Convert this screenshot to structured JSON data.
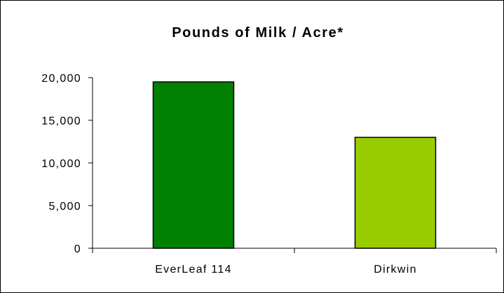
{
  "chart_data": {
    "type": "bar",
    "title": "Pounds of Milk / Acre*",
    "xlabel": "",
    "ylabel": "",
    "categories": [
      "EverLeaf 114",
      "Dirkwin"
    ],
    "values": [
      19500,
      13000
    ],
    "bar_colors": [
      "#008000",
      "#99cc00"
    ],
    "ylim": [
      0,
      20000
    ],
    "yticks": [
      0,
      5000,
      10000,
      15000,
      20000
    ],
    "ytick_labels": [
      "0",
      "5,000",
      "10,000",
      "15,000",
      "20,000"
    ],
    "grid": false,
    "legend": "none"
  }
}
